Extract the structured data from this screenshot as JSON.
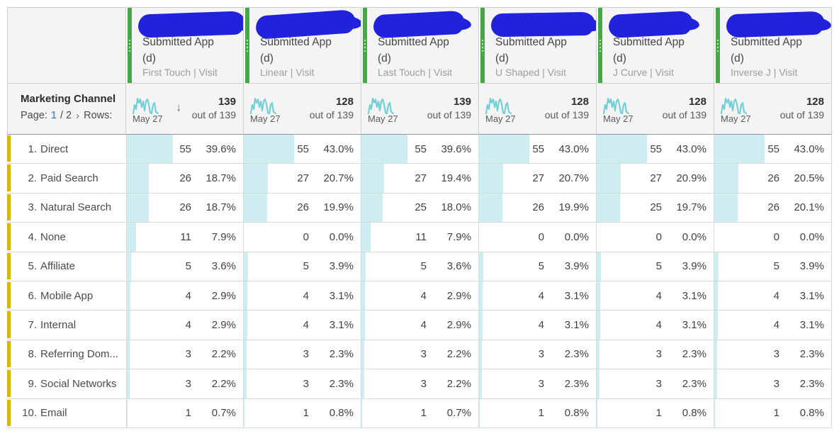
{
  "table": {
    "dimension_header": {
      "title": "Marketing Channel",
      "page_label": "Page:",
      "page_current": "1",
      "page_total": "/ 2",
      "next_icon": "›",
      "rows_label": "Rows:"
    },
    "columns": [
      {
        "metric_line1": "Submitted App",
        "metric_line2": "(d)",
        "model": "First Touch | Visit",
        "date": "May 27",
        "total": "139",
        "out_of": "out of 139",
        "sort_arrow": "↓"
      },
      {
        "metric_line1": "Submitted App",
        "metric_line2": "(d)",
        "model": "Linear | Visit",
        "date": "May 27",
        "total": "128",
        "out_of": "out of 139",
        "sort_arrow": ""
      },
      {
        "metric_line1": "Submitted App",
        "metric_line2": "(d)",
        "model": "Last Touch | Visit",
        "date": "May 27",
        "total": "139",
        "out_of": "out of 139",
        "sort_arrow": ""
      },
      {
        "metric_line1": "Submitted App",
        "metric_line2": "(d)",
        "model": "U Shaped | Visit",
        "date": "May 27",
        "total": "128",
        "out_of": "out of 139",
        "sort_arrow": ""
      },
      {
        "metric_line1": "Submitted App",
        "metric_line2": "(d)",
        "model": "J Curve | Visit",
        "date": "May 27",
        "total": "128",
        "out_of": "out of 139",
        "sort_arrow": ""
      },
      {
        "metric_line1": "Submitted App",
        "metric_line2": "(d)",
        "model": "Inverse J | Visit",
        "date": "May 27",
        "total": "128",
        "out_of": "out of 139",
        "sort_arrow": ""
      }
    ],
    "rows": [
      {
        "rank": "1.",
        "name": "Direct",
        "cells": [
          {
            "count": "55",
            "pct": "39.6%",
            "pct_val": 39.6
          },
          {
            "count": "55",
            "pct": "43.0%",
            "pct_val": 43.0
          },
          {
            "count": "55",
            "pct": "39.6%",
            "pct_val": 39.6
          },
          {
            "count": "55",
            "pct": "43.0%",
            "pct_val": 43.0
          },
          {
            "count": "55",
            "pct": "43.0%",
            "pct_val": 43.0
          },
          {
            "count": "55",
            "pct": "43.0%",
            "pct_val": 43.0
          }
        ]
      },
      {
        "rank": "2.",
        "name": "Paid Search",
        "cells": [
          {
            "count": "26",
            "pct": "18.7%",
            "pct_val": 18.7
          },
          {
            "count": "27",
            "pct": "20.7%",
            "pct_val": 20.7
          },
          {
            "count": "27",
            "pct": "19.4%",
            "pct_val": 19.4
          },
          {
            "count": "27",
            "pct": "20.7%",
            "pct_val": 20.7
          },
          {
            "count": "27",
            "pct": "20.9%",
            "pct_val": 20.9
          },
          {
            "count": "26",
            "pct": "20.5%",
            "pct_val": 20.5
          }
        ]
      },
      {
        "rank": "3.",
        "name": "Natural Search",
        "cells": [
          {
            "count": "26",
            "pct": "18.7%",
            "pct_val": 18.7
          },
          {
            "count": "26",
            "pct": "19.9%",
            "pct_val": 19.9
          },
          {
            "count": "25",
            "pct": "18.0%",
            "pct_val": 18.0
          },
          {
            "count": "26",
            "pct": "19.9%",
            "pct_val": 19.9
          },
          {
            "count": "25",
            "pct": "19.7%",
            "pct_val": 19.7
          },
          {
            "count": "26",
            "pct": "20.1%",
            "pct_val": 20.1
          }
        ]
      },
      {
        "rank": "4.",
        "name": "None",
        "cells": [
          {
            "count": "11",
            "pct": "7.9%",
            "pct_val": 7.9
          },
          {
            "count": "0",
            "pct": "0.0%",
            "pct_val": 0.0
          },
          {
            "count": "11",
            "pct": "7.9%",
            "pct_val": 7.9
          },
          {
            "count": "0",
            "pct": "0.0%",
            "pct_val": 0.0
          },
          {
            "count": "0",
            "pct": "0.0%",
            "pct_val": 0.0
          },
          {
            "count": "0",
            "pct": "0.0%",
            "pct_val": 0.0
          }
        ]
      },
      {
        "rank": "5.",
        "name": "Affiliate",
        "cells": [
          {
            "count": "5",
            "pct": "3.6%",
            "pct_val": 3.6
          },
          {
            "count": "5",
            "pct": "3.9%",
            "pct_val": 3.9
          },
          {
            "count": "5",
            "pct": "3.6%",
            "pct_val": 3.6
          },
          {
            "count": "5",
            "pct": "3.9%",
            "pct_val": 3.9
          },
          {
            "count": "5",
            "pct": "3.9%",
            "pct_val": 3.9
          },
          {
            "count": "5",
            "pct": "3.9%",
            "pct_val": 3.9
          }
        ]
      },
      {
        "rank": "6.",
        "name": "Mobile App",
        "cells": [
          {
            "count": "4",
            "pct": "2.9%",
            "pct_val": 2.9
          },
          {
            "count": "4",
            "pct": "3.1%",
            "pct_val": 3.1
          },
          {
            "count": "4",
            "pct": "2.9%",
            "pct_val": 2.9
          },
          {
            "count": "4",
            "pct": "3.1%",
            "pct_val": 3.1
          },
          {
            "count": "4",
            "pct": "3.1%",
            "pct_val": 3.1
          },
          {
            "count": "4",
            "pct": "3.1%",
            "pct_val": 3.1
          }
        ]
      },
      {
        "rank": "7.",
        "name": "Internal",
        "cells": [
          {
            "count": "4",
            "pct": "2.9%",
            "pct_val": 2.9
          },
          {
            "count": "4",
            "pct": "3.1%",
            "pct_val": 3.1
          },
          {
            "count": "4",
            "pct": "2.9%",
            "pct_val": 2.9
          },
          {
            "count": "4",
            "pct": "3.1%",
            "pct_val": 3.1
          },
          {
            "count": "4",
            "pct": "3.1%",
            "pct_val": 3.1
          },
          {
            "count": "4",
            "pct": "3.1%",
            "pct_val": 3.1
          }
        ]
      },
      {
        "rank": "8.",
        "name": "Referring Dom...",
        "cells": [
          {
            "count": "3",
            "pct": "2.2%",
            "pct_val": 2.2
          },
          {
            "count": "3",
            "pct": "2.3%",
            "pct_val": 2.3
          },
          {
            "count": "3",
            "pct": "2.2%",
            "pct_val": 2.2
          },
          {
            "count": "3",
            "pct": "2.3%",
            "pct_val": 2.3
          },
          {
            "count": "3",
            "pct": "2.3%",
            "pct_val": 2.3
          },
          {
            "count": "3",
            "pct": "2.3%",
            "pct_val": 2.3
          }
        ]
      },
      {
        "rank": "9.",
        "name": "Social Networks",
        "cells": [
          {
            "count": "3",
            "pct": "2.2%",
            "pct_val": 2.2
          },
          {
            "count": "3",
            "pct": "2.3%",
            "pct_val": 2.3
          },
          {
            "count": "3",
            "pct": "2.2%",
            "pct_val": 2.2
          },
          {
            "count": "3",
            "pct": "2.3%",
            "pct_val": 2.3
          },
          {
            "count": "3",
            "pct": "2.3%",
            "pct_val": 2.3
          },
          {
            "count": "3",
            "pct": "2.3%",
            "pct_val": 2.3
          }
        ]
      },
      {
        "rank": "10.",
        "name": "Email",
        "cells": [
          {
            "count": "1",
            "pct": "0.7%",
            "pct_val": 0.7
          },
          {
            "count": "1",
            "pct": "0.8%",
            "pct_val": 0.8
          },
          {
            "count": "1",
            "pct": "0.7%",
            "pct_val": 0.7
          },
          {
            "count": "1",
            "pct": "0.8%",
            "pct_val": 0.8
          },
          {
            "count": "1",
            "pct": "0.8%",
            "pct_val": 0.8
          },
          {
            "count": "1",
            "pct": "0.8%",
            "pct_val": 0.8
          }
        ]
      }
    ]
  },
  "colors": {
    "column_accent_green": "#44a944",
    "row_accent_yellow": "#d9b310",
    "bar_fill_cyan": "#cdedf0",
    "sparkline_teal": "#74d0d6",
    "page_link_blue": "#2574d4",
    "redaction_blue": "#2222dd",
    "header_bg": "#f4f4f5"
  }
}
